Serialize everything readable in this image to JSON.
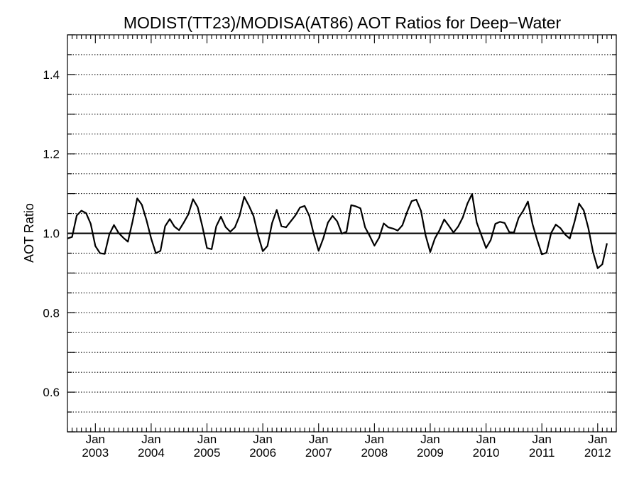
{
  "chart_data": {
    "type": "line",
    "title": "MODIST(TT23)/MODISA(AT86)  AOT Ratios for Deep−Water",
    "xlabel": "",
    "ylabel": "AOT Ratio",
    "x_start": "2002-07",
    "x_step": "month",
    "x_ticks": [
      {
        "month": "Jan",
        "year": "2003",
        "date": "2003-01"
      },
      {
        "month": "Jan",
        "year": "2004",
        "date": "2004-01"
      },
      {
        "month": "Jan",
        "year": "2005",
        "date": "2005-01"
      },
      {
        "month": "Jan",
        "year": "2006",
        "date": "2006-01"
      },
      {
        "month": "Jan",
        "year": "2007",
        "date": "2007-01"
      },
      {
        "month": "Jan",
        "year": "2008",
        "date": "2008-01"
      },
      {
        "month": "Jan",
        "year": "2009",
        "date": "2009-01"
      },
      {
        "month": "Jan",
        "year": "2010",
        "date": "2010-01"
      },
      {
        "month": "Jan",
        "year": "2011",
        "date": "2011-01"
      },
      {
        "month": "Jan",
        "year": "2012",
        "date": "2012-01"
      }
    ],
    "xlim": [
      "2002-07",
      "2012-05"
    ],
    "ylim": [
      0.5,
      1.5
    ],
    "y_ticks": [
      "0.6",
      "0.8",
      "1.0",
      "1.2",
      "1.4"
    ],
    "reference_line": 1.0,
    "grid": {
      "horizontal": true,
      "step": 0.05,
      "style": "dotted"
    },
    "series": [
      {
        "values": [
          0.987,
          0.991,
          1.045,
          1.057,
          1.051,
          1.024,
          0.968,
          0.95,
          0.948,
          0.997,
          1.021,
          1.001,
          0.989,
          0.979,
          1.03,
          1.088,
          1.072,
          1.033,
          0.987,
          0.95,
          0.956,
          1.018,
          1.036,
          1.017,
          1.008,
          1.027,
          1.048,
          1.086,
          1.066,
          1.018,
          0.963,
          0.96,
          1.018,
          1.042,
          1.016,
          1.004,
          1.015,
          1.044,
          1.092,
          1.07,
          1.044,
          0.995,
          0.955,
          0.968,
          1.026,
          1.059,
          1.018,
          1.015,
          1.03,
          1.045,
          1.065,
          1.069,
          1.044,
          0.996,
          0.956,
          0.987,
          1.027,
          1.044,
          1.03,
          0.999,
          1.004,
          1.071,
          1.068,
          1.063,
          1.015,
          0.993,
          0.969,
          0.989,
          1.025,
          1.015,
          1.012,
          1.007,
          1.02,
          1.053,
          1.081,
          1.085,
          1.057,
          0.995,
          0.953,
          0.987,
          1.008,
          1.035,
          1.019,
          1.002,
          1.017,
          1.04,
          1.075,
          1.099,
          1.027,
          0.995,
          0.963,
          0.983,
          1.024,
          1.029,
          1.026,
          1.003,
          1.002,
          1.039,
          1.057,
          1.08,
          1.023,
          0.983,
          0.947,
          0.951,
          1.001,
          1.022,
          1.013,
          0.997,
          0.987,
          1.028,
          1.075,
          1.058,
          1.013,
          0.953,
          0.912,
          0.922,
          0.975
        ]
      }
    ]
  }
}
